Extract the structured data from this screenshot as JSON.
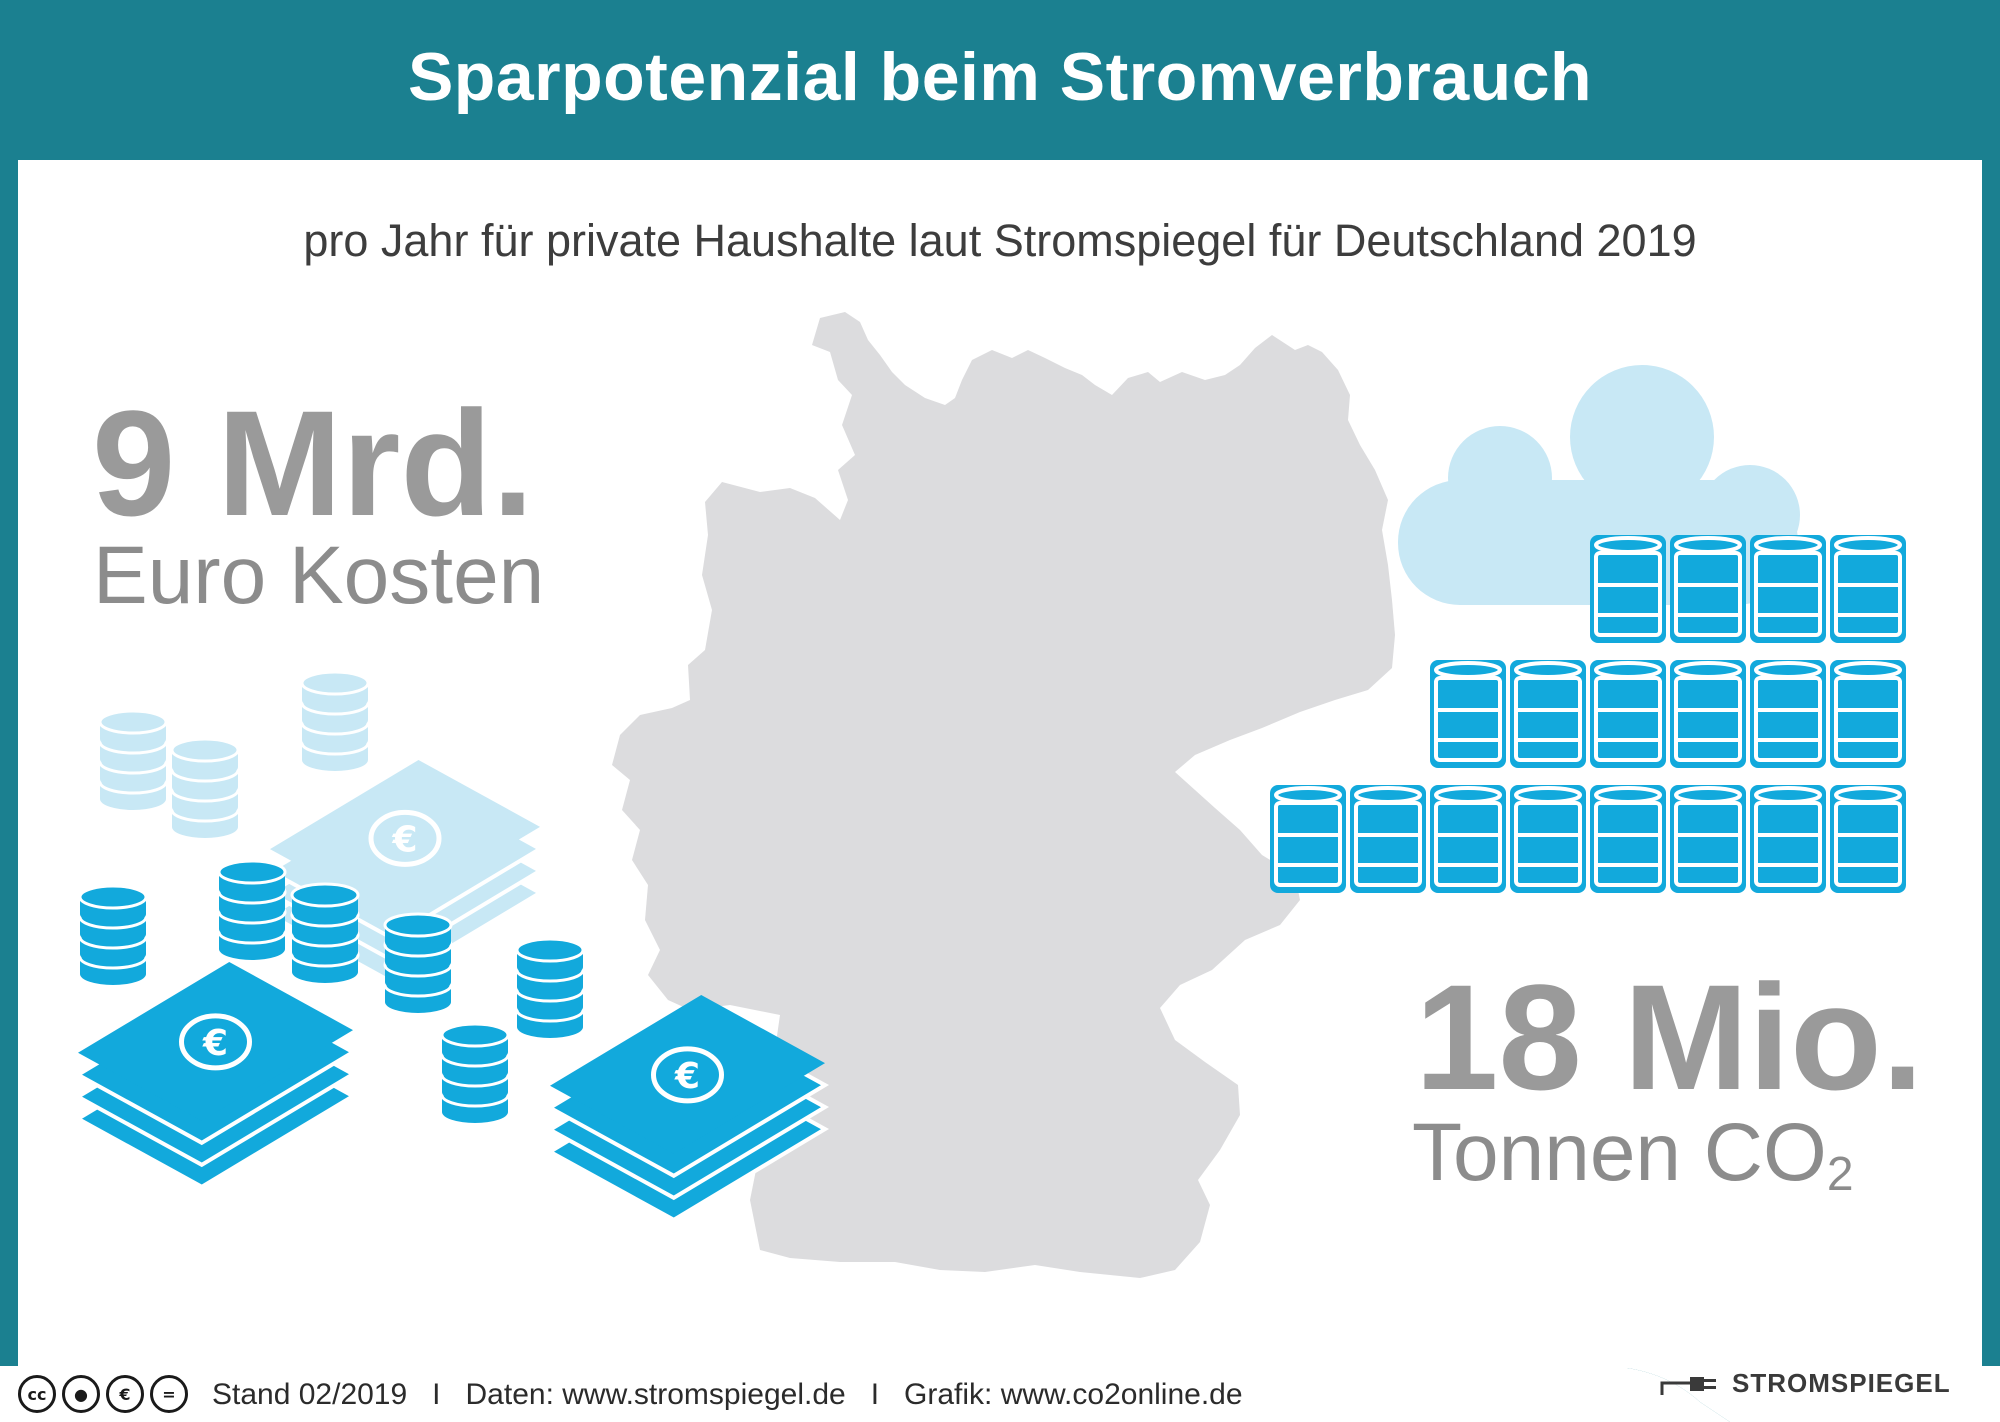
{
  "header": {
    "title": "Sparpotenzial beim Stromverbrauch"
  },
  "subtitle": "pro Jahr für private Haushalte laut Stromspiegel für Deutschland 2019",
  "left_stat": {
    "value": "9 Mrd.",
    "unit": "Euro Kosten"
  },
  "right_stat": {
    "value": "18 Mio.",
    "unit": "Tonnen CO",
    "unit_subscript": "2"
  },
  "footer": {
    "text": "Stand 02/2019   I   Daten: www.stromspiegel.de   I   Grafik: www.co2online.de",
    "license_icons": [
      "cc-icon",
      "by-icon",
      "nc-icon",
      "nd-icon"
    ],
    "brand": "STROMSPIEGEL"
  },
  "colors": {
    "teal": "#1b8090",
    "blue": "#12a9dc",
    "light_blue": "#c8e8f5",
    "grey_map": "#dcdcde",
    "grey_text": "#9a9a9a"
  }
}
